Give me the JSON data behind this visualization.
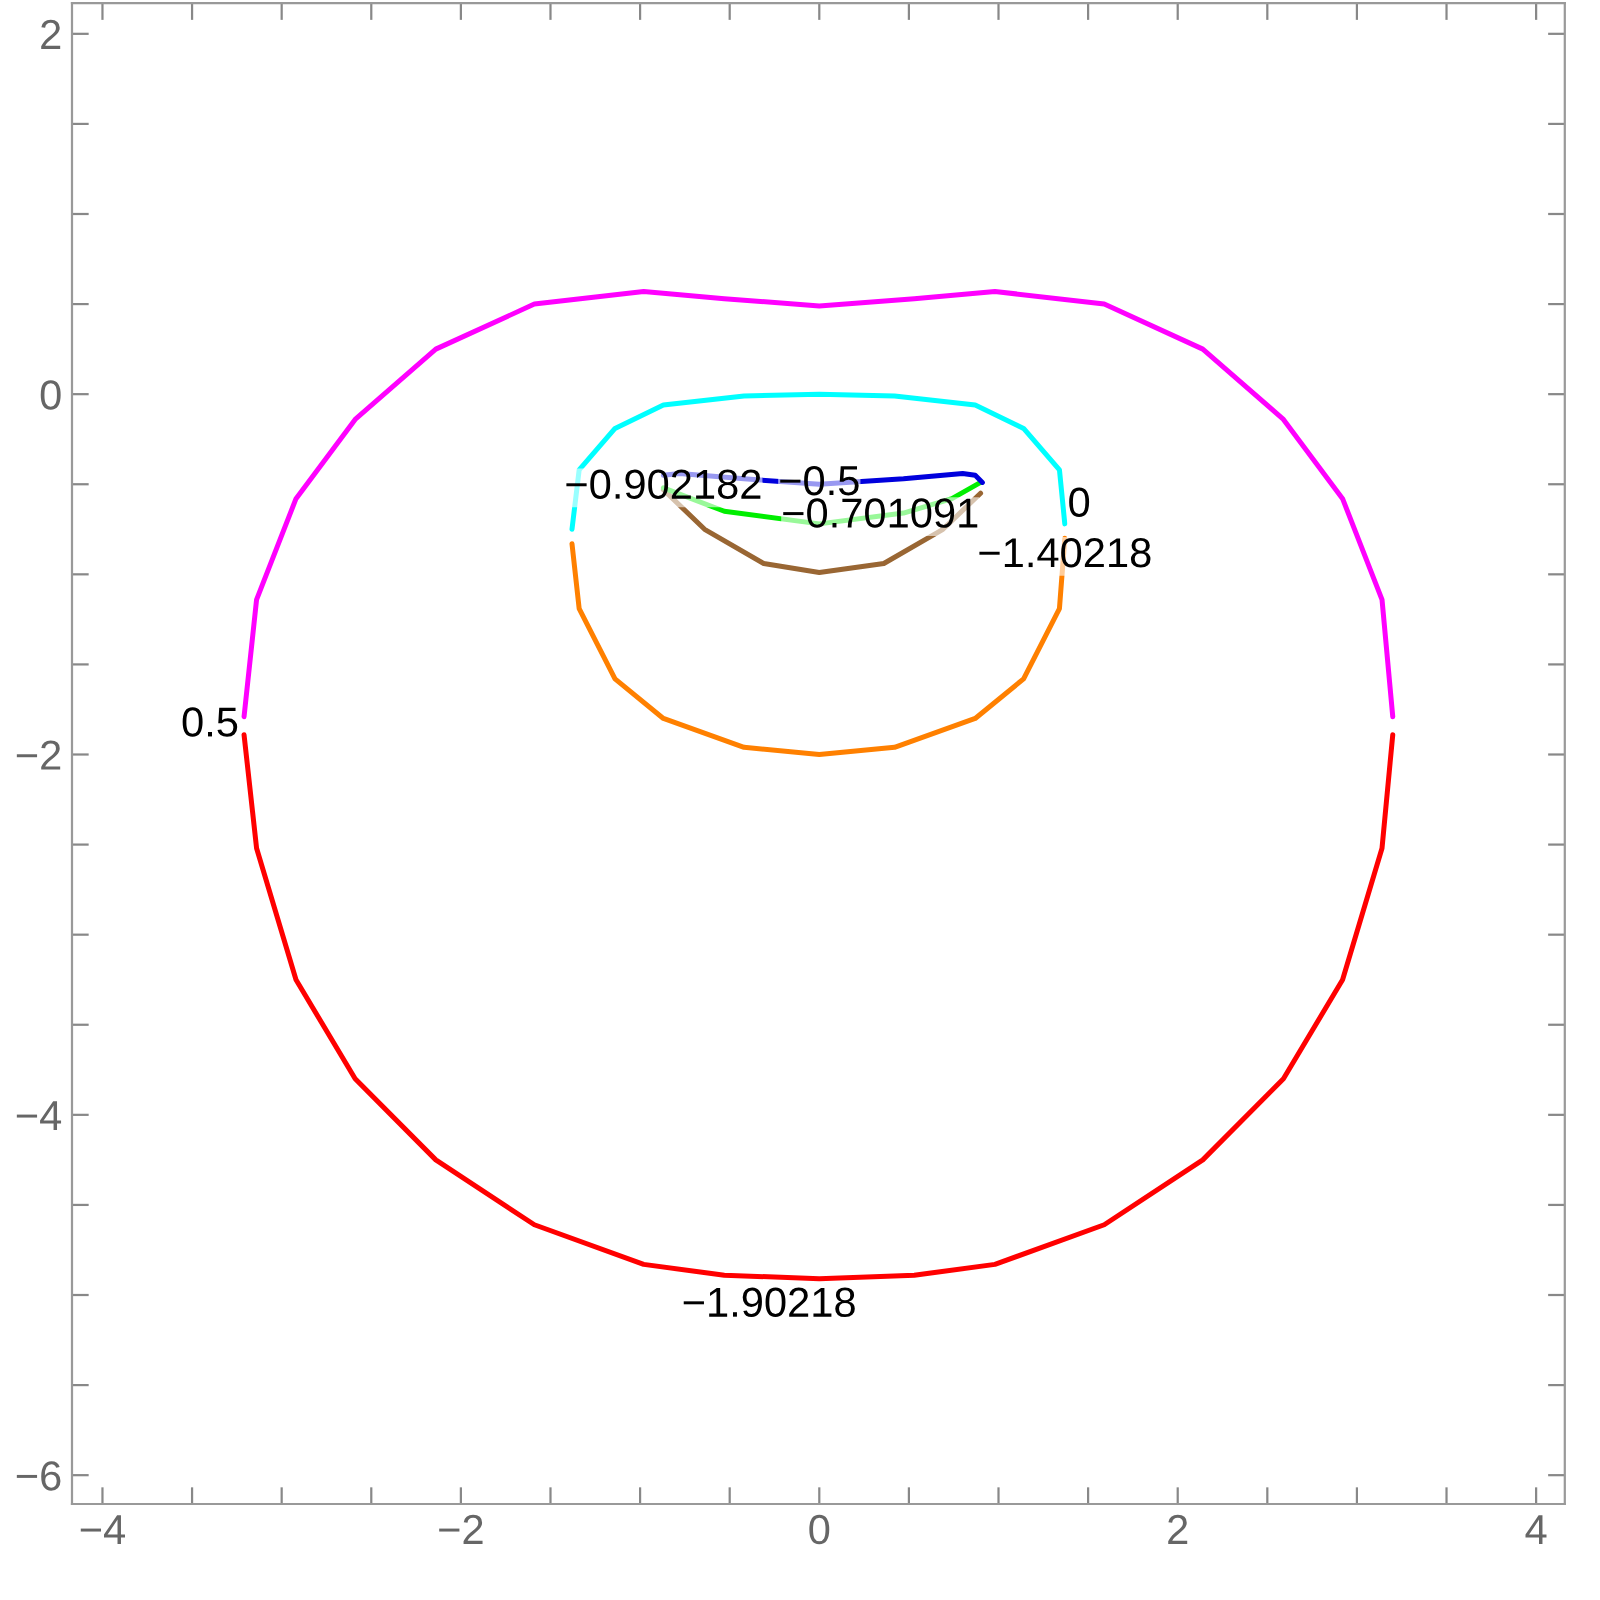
{
  "chart_data": {
    "type": "line",
    "xlim": [
      -4.17,
      4.16
    ],
    "ylim": [
      -6.16,
      2.17
    ],
    "xticks": [
      {
        "value": -4,
        "label": "−4"
      },
      {
        "value": -3.5,
        "label": null
      },
      {
        "value": -3,
        "label": null
      },
      {
        "value": -2.5,
        "label": null
      },
      {
        "value": -2,
        "label": "−2"
      },
      {
        "value": -1.5,
        "label": null
      },
      {
        "value": -1,
        "label": null
      },
      {
        "value": -0.5,
        "label": null
      },
      0,
      {
        "value": 0.5,
        "label": null
      },
      {
        "value": 1,
        "label": null
      },
      {
        "value": 1.5,
        "label": null
      },
      2,
      {
        "value": 2.5,
        "label": null
      },
      {
        "value": 3,
        "label": null
      },
      {
        "value": 3.5,
        "label": null
      },
      4
    ],
    "yticks": [
      {
        "value": -6,
        "label": "−6"
      },
      {
        "value": -5.5,
        "label": null
      },
      {
        "value": -5,
        "label": null
      },
      {
        "value": -4.5,
        "label": null
      },
      {
        "value": -4,
        "label": "−4"
      },
      {
        "value": -3.5,
        "label": null
      },
      {
        "value": -3,
        "label": null
      },
      {
        "value": -2.5,
        "label": null
      },
      {
        "value": -2,
        "label": "−2"
      },
      {
        "value": -1.5,
        "label": null
      },
      {
        "value": -1,
        "label": null
      },
      {
        "value": -0.5,
        "label": null
      },
      0,
      {
        "value": 0.5,
        "label": null
      },
      {
        "value": 1,
        "label": null
      },
      {
        "value": 1.5,
        "label": null
      },
      2
    ],
    "grid": false,
    "legend": false,
    "series": [
      {
        "color": "#ff00ff",
        "x": [
          -3.21,
          -3.14,
          -2.92,
          -2.59,
          -2.14,
          -1.59,
          -0.98,
          -0.53,
          0,
          0.53,
          0.98,
          1.59,
          2.14,
          2.59,
          2.92,
          3.14,
          3.2
        ],
        "values": [
          -1.79,
          -1.14,
          -0.58,
          -0.14,
          0.25,
          0.5,
          0.57,
          0.53,
          0.49,
          0.53,
          0.57,
          0.5,
          0.25,
          -0.14,
          -0.58,
          -1.14,
          -1.79
        ]
      },
      {
        "color": "#ff0000",
        "x": [
          -3.21,
          -3.14,
          -2.92,
          -2.59,
          -2.14,
          -1.59,
          -0.98,
          -0.53,
          0,
          0.53,
          0.98,
          1.59,
          2.14,
          2.59,
          2.92,
          3.14,
          3.2
        ],
        "values": [
          -1.89,
          -2.52,
          -3.25,
          -3.8,
          -4.25,
          -4.61,
          -4.83,
          -4.89,
          -4.91,
          -4.89,
          -4.83,
          -4.61,
          -4.25,
          -3.8,
          -3.25,
          -2.52,
          -1.89
        ]
      },
      {
        "color": "#00ffff",
        "x": [
          -1.38,
          -1.34,
          -1.14,
          -0.87,
          -0.42,
          0,
          0.42,
          0.87,
          1.14,
          1.34,
          1.37
        ],
        "values": [
          -0.75,
          -0.42,
          -0.19,
          -0.06,
          -0.01,
          0,
          -0.01,
          -0.06,
          -0.19,
          -0.42,
          -0.72
        ]
      },
      {
        "color": "#ff8000",
        "x": [
          -1.38,
          -1.34,
          -1.14,
          -0.87,
          -0.42,
          0,
          0.42,
          0.87,
          1.14,
          1.34,
          1.37
        ],
        "values": [
          -0.83,
          -1.19,
          -1.58,
          -1.8,
          -1.96,
          -2.0,
          -1.96,
          -1.8,
          -1.58,
          -1.19,
          -0.8
        ]
      },
      {
        "color": "#996633",
        "x": [
          -0.87,
          -0.64,
          -0.31,
          0,
          0.36,
          0.69,
          0.9
        ],
        "values": [
          -0.53,
          -0.75,
          -0.94,
          -0.99,
          -0.94,
          -0.75,
          -0.55
        ]
      },
      {
        "color": "#00ee00",
        "x": [
          -0.87,
          -0.53,
          0,
          0.47,
          0.74,
          0.9
        ],
        "values": [
          -0.52,
          -0.65,
          -0.72,
          -0.66,
          -0.58,
          -0.49
        ]
      },
      {
        "color": "#0000dd",
        "x": [
          -0.87,
          -0.78,
          -0.42,
          0,
          0.47,
          0.8,
          0.87,
          0.91
        ],
        "values": [
          -0.45,
          -0.44,
          -0.47,
          -0.5,
          -0.47,
          -0.44,
          -0.45,
          -0.49
        ]
      }
    ],
    "annotations": [
      {
        "text": "0.5",
        "x": -3.4,
        "y": -1.84
      },
      "−1.90218",
      {
        "text": "0",
        "x": 1.45,
        "y": -0.62
      },
      {
        "text": "−1.40218",
        "x": 1.37,
        "y": -0.9
      },
      {
        "text": "−0.5",
        "x": 0,
        "y": -0.5
      },
      {
        "text": "−0.902182",
        "x": -0.87,
        "y": -0.52
      },
      {
        "text": "−0.701091",
        "x": 0.34,
        "y": -0.68
      }
    ]
  }
}
